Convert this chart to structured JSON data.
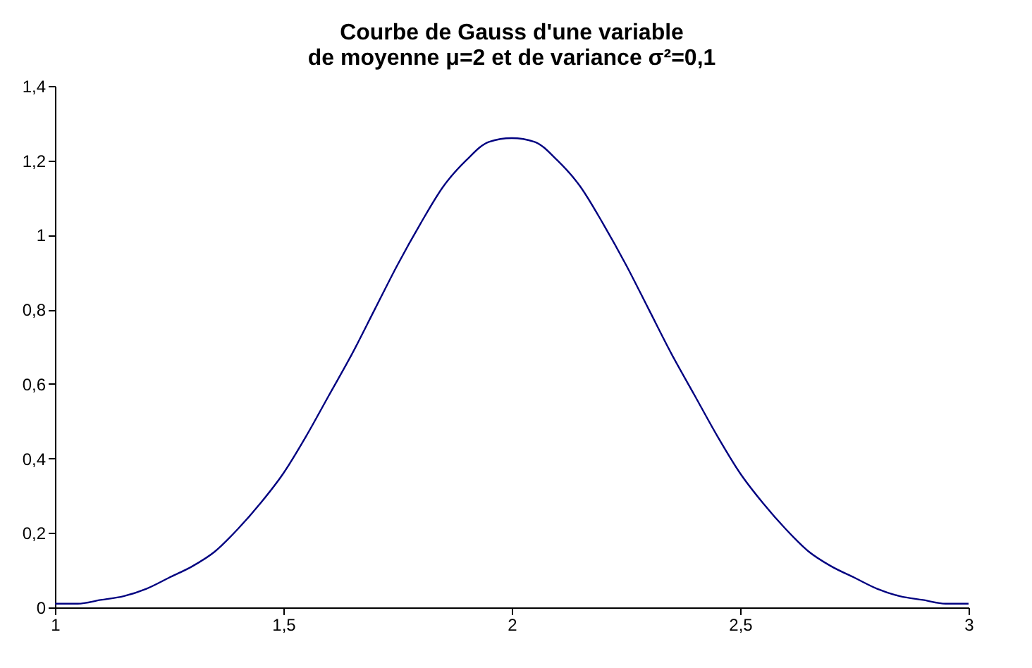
{
  "chart_data": {
    "type": "line",
    "title": [
      "Courbe de Gauss d'une variable",
      "de moyenne μ=2 et de variance σ²=0,1"
    ],
    "x": [
      1,
      1.05,
      1.1,
      1.15,
      1.2,
      1.25,
      1.3,
      1.35,
      1.4,
      1.45,
      1.5,
      1.55,
      1.6,
      1.65,
      1.7,
      1.75,
      1.8,
      1.85,
      1.9,
      1.95,
      2,
      2.05,
      2.1,
      2.15,
      2.2,
      2.25,
      2.3,
      2.35,
      2.4,
      2.45,
      2.5,
      2.55,
      2.6,
      2.65,
      2.7,
      2.75,
      2.8,
      2.85,
      2.9,
      2.95,
      3
    ],
    "series": [
      {
        "color": "#000080",
        "values": [
          0.01,
          0.01,
          0.02,
          0.03,
          0.05,
          0.08,
          0.11,
          0.15,
          0.21,
          0.28,
          0.36,
          0.46,
          0.57,
          0.68,
          0.8,
          0.92,
          1.03,
          1.13,
          1.2,
          1.25,
          1.26,
          1.25,
          1.2,
          1.13,
          1.03,
          0.92,
          0.8,
          0.68,
          0.57,
          0.46,
          0.36,
          0.28,
          0.21,
          0.15,
          0.11,
          0.08,
          0.05,
          0.03,
          0.02,
          0.01,
          0.01
        ]
      }
    ],
    "xlim": [
      1,
      3
    ],
    "xticks": [
      1,
      {
        "value": 1.5,
        "label": "1,5"
      },
      2,
      {
        "value": 2.5,
        "label": "2,5"
      },
      3
    ],
    "ylim": [
      0,
      1.4
    ],
    "yticks": [
      0,
      {
        "value": 0.2,
        "label": "0,2"
      },
      {
        "value": 0.4,
        "label": "0,4"
      },
      {
        "value": 0.6,
        "label": "0,6"
      },
      {
        "value": 0.8,
        "label": "0,8"
      },
      1,
      {
        "value": 1.2,
        "label": "1,2"
      },
      {
        "value": 1.4,
        "label": "1,4"
      }
    ],
    "grid": false,
    "marker": "none",
    "line_style": "solid"
  }
}
